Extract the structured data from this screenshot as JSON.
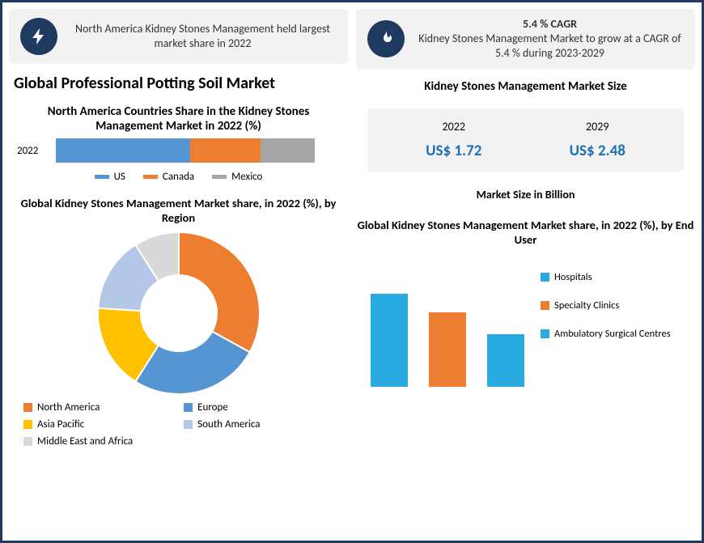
{
  "left": {
    "info": {
      "icon": "bolt",
      "text": "North America Kidney Stones Management held largest market share in 2022"
    },
    "h1": "Global Professional Potting Soil Market",
    "stacked": {
      "title": "North America Countries Share in the Kidney Stones Management  Market in 2022 (%)",
      "row_label": "2022",
      "segments": [
        {
          "label": "US",
          "value": 52,
          "color": "#5596d2"
        },
        {
          "label": "Canada",
          "value": 27,
          "color": "#ed7d31"
        },
        {
          "label": "Mexico",
          "value": 21,
          "color": "#a5a5a5"
        }
      ]
    },
    "donut": {
      "title": "Global Kidney Stones Management Market share, in 2022 (%), by Region",
      "slices": [
        {
          "label": "North America",
          "value": 33,
          "color": "#ed7d31"
        },
        {
          "label": "Europe",
          "value": 26,
          "color": "#5596d2"
        },
        {
          "label": "Asia Pacific",
          "value": 17,
          "color": "#ffc000"
        },
        {
          "label": "South America",
          "value": 15,
          "color": "#b4c7e7"
        },
        {
          "label": "Middle East and Africa",
          "value": 9,
          "color": "#d9d9d9"
        }
      ]
    }
  },
  "right": {
    "info": {
      "icon": "flame",
      "headline": "5.4 % CAGR",
      "text": "Kidney Stones Management Market to grow at a CAGR of 5.4 % during 2023-2029"
    },
    "size": {
      "title": "Kidney Stones Management Market Size",
      "years": [
        "2022",
        "2029"
      ],
      "values": [
        "US$ 1.72",
        "US$ 2.48"
      ],
      "footer": "Market Size in Billion",
      "value_color": "#1f6fb2",
      "bg": "#f2f2f2"
    },
    "bars": {
      "title": "Global Kidney Stones Management Market share, in 2022 (%), by End User",
      "max_height": 155,
      "items": [
        {
          "label": "Hospitals",
          "value": 115,
          "color": "#29abe2"
        },
        {
          "label": "Specialty Clinics",
          "value": 92,
          "color": "#ed7d31"
        },
        {
          "label": "Ambulatory Surgical Centres",
          "value": 65,
          "color": "#29abe2"
        }
      ]
    }
  },
  "colors": {
    "frame": "#1f3a5f",
    "info_bg": "#f2f2f2",
    "icon_bg": "#1f3a5f"
  }
}
